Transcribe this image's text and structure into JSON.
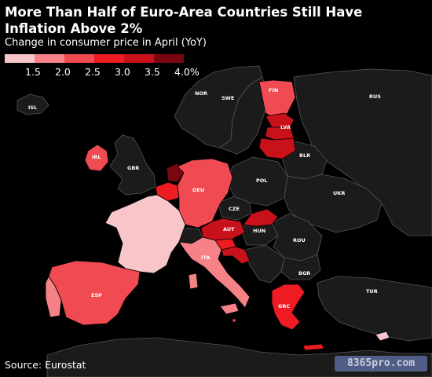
{
  "title": "More Than Half of Euro-Area Countries Still Have Inflation Above 2%",
  "subtitle": "Change in consumer price in April (YoY)",
  "legend": {
    "ticks": [
      "1.5",
      "2.0",
      "2.5",
      "3.0",
      "3.5",
      "4.0%"
    ],
    "colors": [
      "#f8c6c8",
      "#f48287",
      "#f04a52",
      "#ee1b22",
      "#c8111a",
      "#7a0610"
    ]
  },
  "source": "Source: Eurostat",
  "watermark": "8365pro.com",
  "colors": {
    "background": "#000000",
    "non_euro": "#1b1b1b",
    "border": "#555555"
  },
  "countries": [
    {
      "code": "ISL",
      "name": "ISL"
    },
    {
      "code": "NOR",
      "name": "NOR"
    },
    {
      "code": "SWE",
      "name": "SWE"
    },
    {
      "code": "FIN",
      "name": "FIN"
    },
    {
      "code": "RUS",
      "name": "RUS"
    },
    {
      "code": "LVA",
      "name": "LVA"
    },
    {
      "code": "IRL",
      "name": "IRL"
    },
    {
      "code": "GBR",
      "name": "GBR"
    },
    {
      "code": "BLR",
      "name": "BLR"
    },
    {
      "code": "POL",
      "name": "POL"
    },
    {
      "code": "DEU",
      "name": "DEU"
    },
    {
      "code": "UKR",
      "name": "UKR"
    },
    {
      "code": "CZE",
      "name": "CZE"
    },
    {
      "code": "AUT",
      "name": "AUT"
    },
    {
      "code": "HUN",
      "name": "HUN"
    },
    {
      "code": "ROU",
      "name": "ROU"
    },
    {
      "code": "ITA",
      "name": "ITA"
    },
    {
      "code": "BGR",
      "name": "BGR"
    },
    {
      "code": "ESP",
      "name": "ESP"
    },
    {
      "code": "TUR",
      "name": "TUR"
    },
    {
      "code": "GRC",
      "name": "GRC"
    }
  ]
}
